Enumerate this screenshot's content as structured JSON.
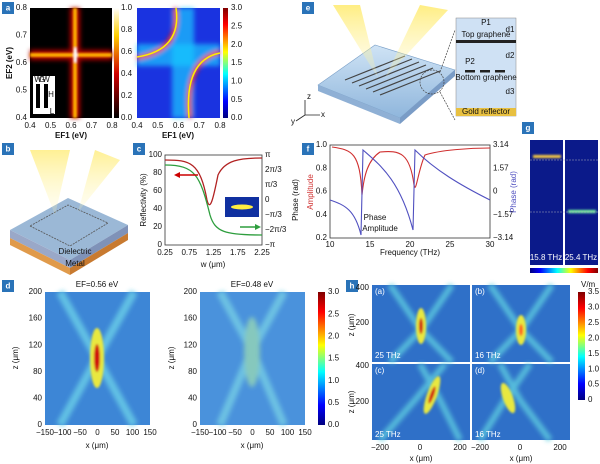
{
  "panel_labels": [
    "a",
    "b",
    "c",
    "d",
    "e",
    "f",
    "g",
    "h"
  ],
  "a": {
    "x_label": "EF1 (eV)",
    "y_label": "EF2 (eV)",
    "xticks": [
      "0.4",
      "0.5",
      "0.6",
      "0.7",
      "0.8"
    ],
    "yticks": [
      "0.4",
      "0.5",
      "0.6",
      "0.7",
      "0.8"
    ],
    "cbar1": [
      "0.0",
      "0.2",
      "0.4",
      "0.6",
      "0.8",
      "1.0"
    ],
    "cbar2": [
      "0.0",
      "0.5",
      "1.0",
      "1.5",
      "2.0",
      "2.5",
      "3.0"
    ],
    "inset": [
      "W",
      "G",
      "W",
      "H",
      "L"
    ]
  },
  "b": {
    "labels": [
      "Dielectric",
      "Metal"
    ]
  },
  "c": {
    "x_label": "w (μm)",
    "y_label": "Reflectivity (%)",
    "y2_label": "Phase (rad)",
    "xticks": [
      "0.25",
      "0.75",
      "1.25",
      "1.75",
      "2.25"
    ],
    "yticks": [
      "0",
      "20",
      "40",
      "60",
      "80",
      "100"
    ],
    "y2ticks": [
      "−π",
      "−2π/3",
      "−π/3",
      "0",
      "π/3",
      "2π/3",
      "π"
    ]
  },
  "d": {
    "titles": [
      "EF=0.56 eV",
      "EF=0.48 eV"
    ],
    "x_label": "x (μm)",
    "y_label": "z (μm)",
    "xticks": [
      "−150",
      "−100",
      "−50",
      "0",
      "50",
      "100",
      "150"
    ],
    "yticks": [
      "0",
      "40",
      "80",
      "120",
      "160",
      "200"
    ],
    "cbar": [
      "0.0",
      "0.5",
      "1.0",
      "1.5",
      "2.0",
      "2.5",
      "3.0"
    ]
  },
  "e": {
    "axes": [
      "x",
      "y",
      "z"
    ],
    "inset": [
      "P1",
      "Top graphene",
      "P2",
      "Bottom graphene",
      "Gold reflector",
      "d1",
      "d2",
      "d3"
    ]
  },
  "f": {
    "x_label": "Frequency (THz)",
    "y_label": "Amplitude",
    "y2_label": "Phase (rad)",
    "xticks": [
      "10",
      "15",
      "20",
      "25",
      "30"
    ],
    "yticks": [
      "0.2",
      "0.4",
      "0.6",
      "0.8",
      "1.0"
    ],
    "y2ticks": [
      "−3.14",
      "−1.57",
      "0",
      "1.57",
      "3.14"
    ],
    "legend": [
      "Phase",
      "Amplitude"
    ]
  },
  "g": {
    "labels": [
      "15.8 THz",
      "25.4 THz"
    ]
  },
  "h": {
    "sub": [
      "(a)",
      "(b)",
      "(c)",
      "(d)"
    ],
    "freqs": [
      "25 THz",
      "16 THz",
      "25 THz",
      "16 THz"
    ],
    "x_label": "x (μm)",
    "y_label": "z (μm)",
    "xticks": [
      "−200",
      "0",
      "200"
    ],
    "yticks": [
      "200",
      "400"
    ],
    "cbar_title": "V/m",
    "cbar": [
      "0",
      "0.5",
      "1.0",
      "1.5",
      "2.0",
      "2.5",
      "3.0",
      "3.5"
    ]
  }
}
